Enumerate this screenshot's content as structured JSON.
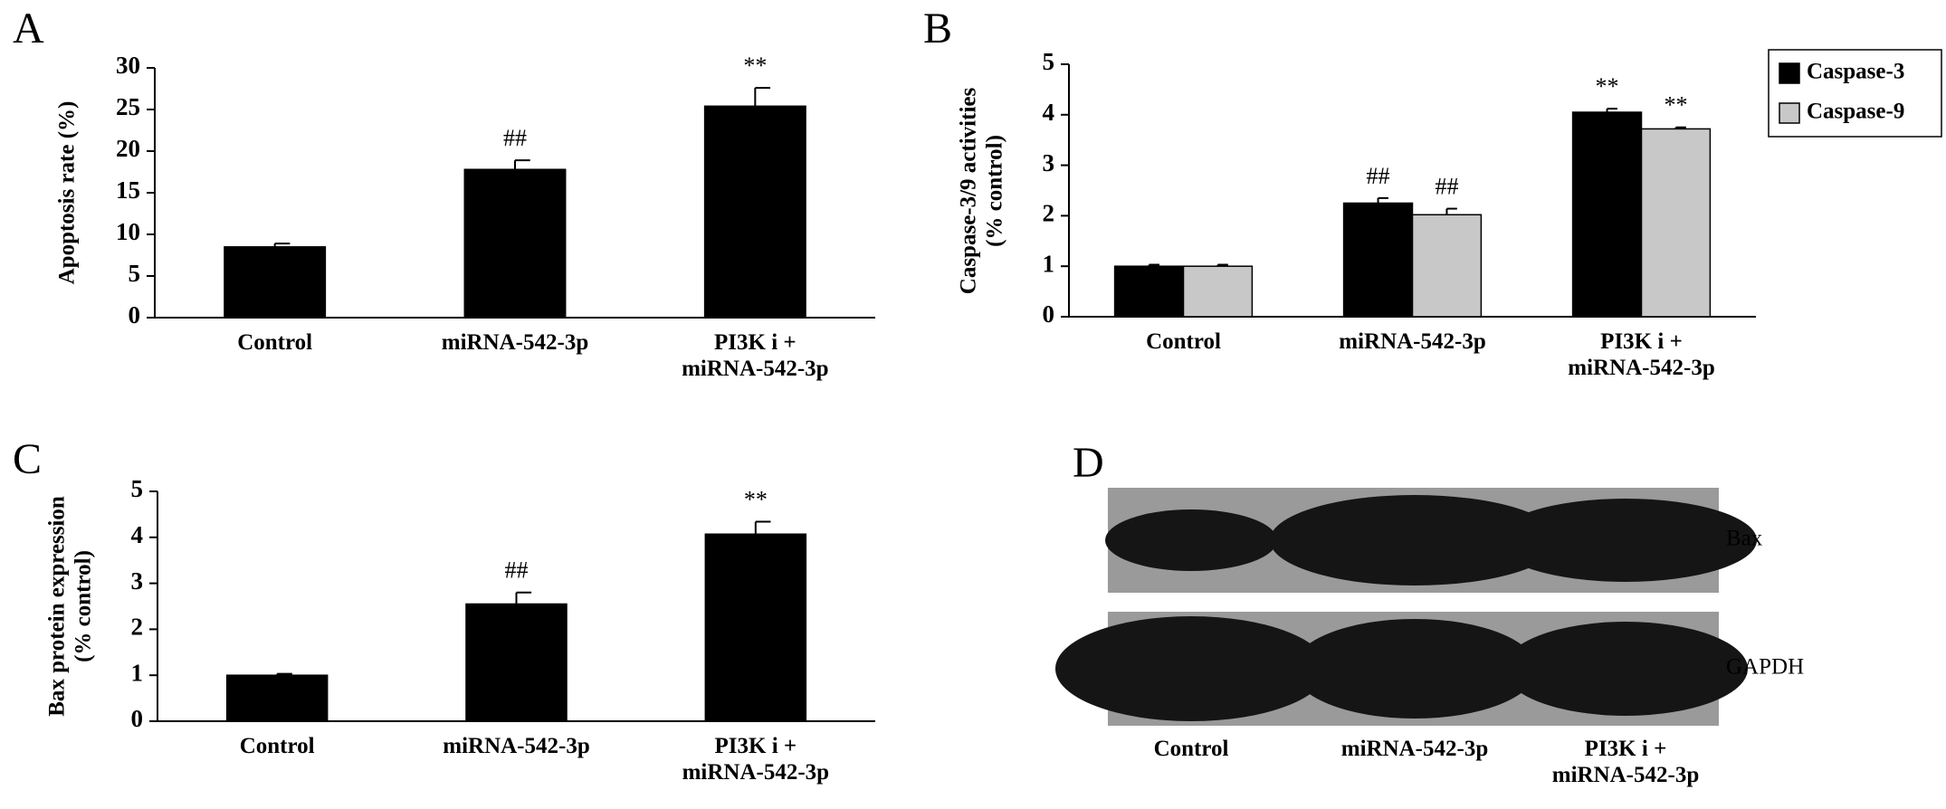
{
  "chart_data": [
    {
      "type": "bar",
      "label": "A",
      "ylabel": "Apoptosis rate (%)",
      "categories": [
        "Control",
        "miRNA-542-3p",
        "PI3K i +\nmiRNA-542-3p"
      ],
      "values": [
        8.5,
        17.8,
        25.4
      ],
      "errors": [
        0.4,
        1.1,
        2.2
      ],
      "annotations": [
        null,
        "##",
        "**"
      ],
      "color": "#000000",
      "ylim": [
        0,
        30
      ],
      "yticks": [
        0,
        5,
        10,
        15,
        20,
        25,
        30
      ]
    },
    {
      "type": "bar",
      "label": "B",
      "ylabel": "Caspase-3/9 activities\n(% control)",
      "categories": [
        "Control",
        "miRNA-542-3p",
        "PI3K i +\nmiRNA-542-3p"
      ],
      "series": [
        {
          "name": "Caspase-3",
          "color": "#000000",
          "values": [
            1.0,
            2.25,
            4.05
          ],
          "errors": [
            0.03,
            0.1,
            0.07
          ],
          "annotations": [
            null,
            "##",
            "**"
          ]
        },
        {
          "name": "Caspase-9",
          "color": "#c8c8c8",
          "values": [
            1.0,
            2.02,
            3.72
          ],
          "errors": [
            0.03,
            0.12,
            0.03
          ],
          "annotations": [
            null,
            "##",
            "**"
          ]
        }
      ],
      "legend": "outside-upper-right",
      "ylim": [
        0,
        5
      ],
      "yticks": [
        0,
        1,
        2,
        3,
        4,
        5
      ]
    },
    {
      "type": "bar",
      "label": "C",
      "ylabel": "Bax protein expression\n(% control)",
      "categories": [
        "Control",
        "miRNA-542-3p",
        "PI3K i +\nmiRNA-542-3p"
      ],
      "values": [
        1.0,
        2.55,
        4.07
      ],
      "errors": [
        0.03,
        0.25,
        0.27
      ],
      "annotations": [
        null,
        "##",
        "**"
      ],
      "color": "#000000",
      "ylim": [
        0,
        5
      ],
      "yticks": [
        0,
        1,
        2,
        3,
        4,
        5
      ]
    },
    {
      "type": "blot",
      "label": "D",
      "rows": [
        "Bax",
        "GAPDH"
      ],
      "categories": [
        "Control",
        "miRNA-542-3p",
        "PI3K i +\nmiRNA-542-3p"
      ]
    }
  ]
}
